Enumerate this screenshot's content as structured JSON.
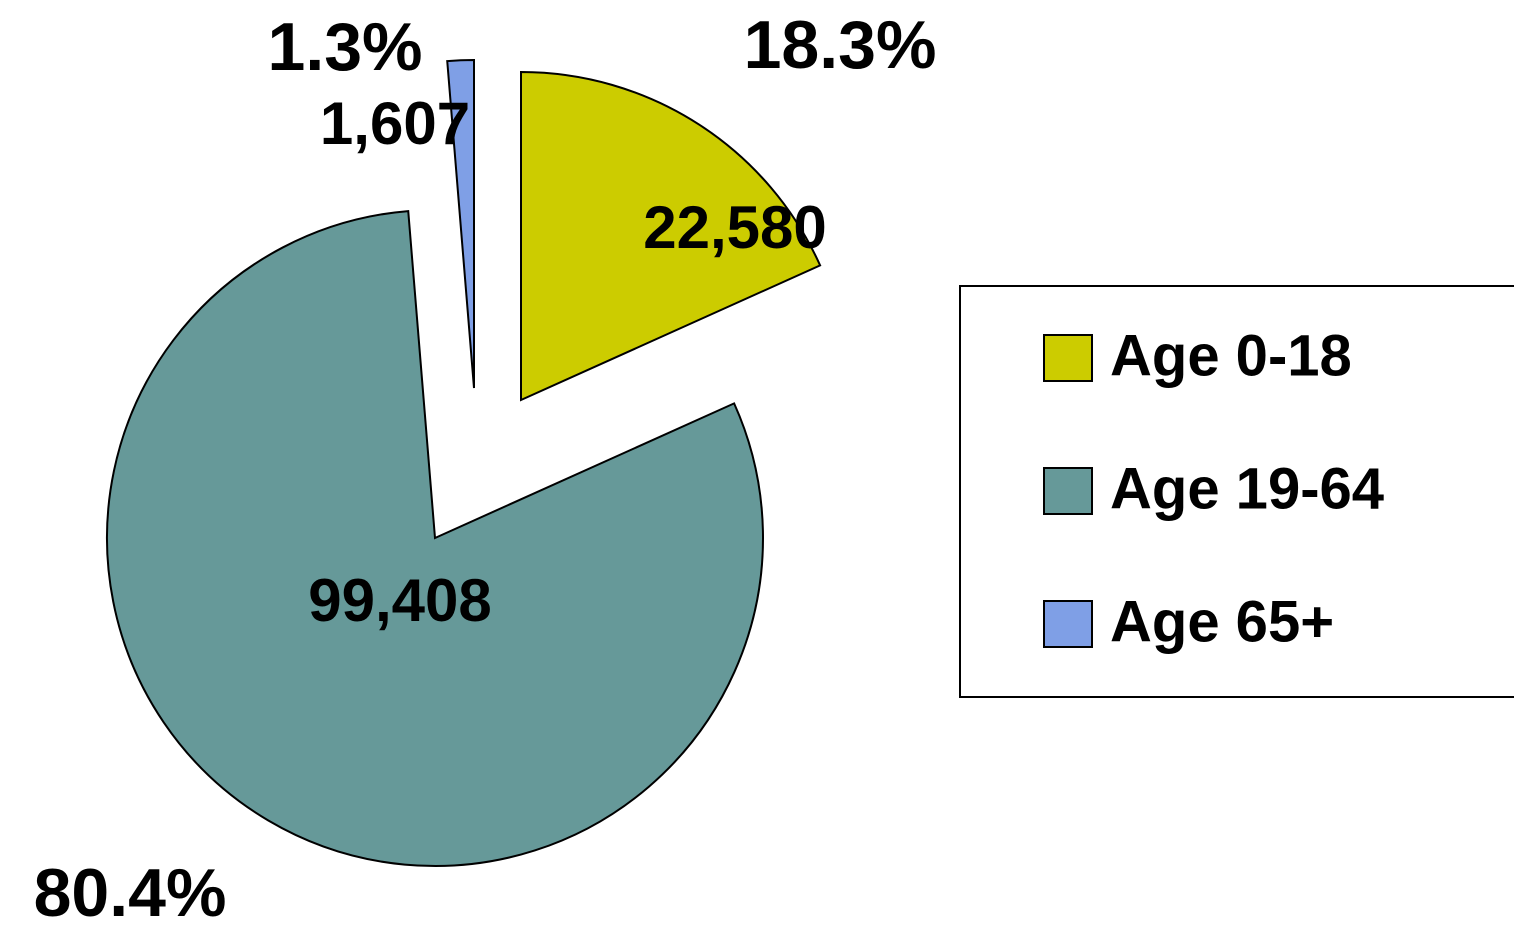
{
  "chart_data": {
    "type": "pie",
    "categories": [
      "Age 0-18",
      "Age 19-64",
      "Age 65+"
    ],
    "values": [
      22580,
      99408,
      1607
    ],
    "value_labels": [
      "22,580",
      "99,408",
      "1,607"
    ],
    "percentages": [
      18.3,
      80.4,
      1.3
    ],
    "percentage_labels": [
      "18.3%",
      "80.4%",
      "1.3%"
    ],
    "colors": [
      "#cccc00",
      "#669999",
      "#7f9fe6"
    ],
    "legend": "right"
  }
}
